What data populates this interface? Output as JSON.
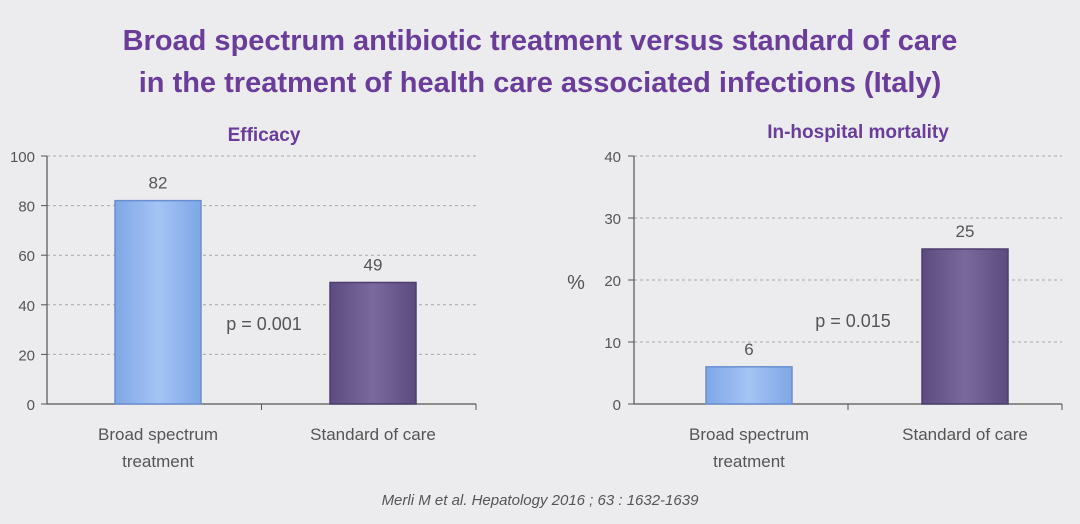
{
  "title": {
    "line1": "Broad spectrum antibiotic treatment versus standard of care",
    "line2": "in the treatment of health care associated infections (Italy)"
  },
  "citation": "Merli M et al. Hepatology 2016 ; 63 : 1632-1639",
  "colors": {
    "title": "#6a3d9a",
    "broad_bar": "#8fb4ee",
    "standard_bar": "#6b5a8e",
    "axis_text": "#555555",
    "grid": "#a8a8a8"
  },
  "chart_data": [
    {
      "type": "bar",
      "title": "Efficacy",
      "ylabel": "",
      "categories": [
        "Broad spectrum treatment",
        "Standard of care"
      ],
      "category_lines": [
        [
          "Broad spectrum",
          "treatment"
        ],
        [
          "Standard of care"
        ]
      ],
      "values": [
        82,
        49
      ],
      "ylim": [
        0,
        100
      ],
      "yticks": [
        0,
        20,
        40,
        60,
        80,
        100
      ],
      "annotation": "p = 0.001",
      "grid": true
    },
    {
      "type": "bar",
      "title": "In-hospital mortality",
      "ylabel": "%",
      "categories": [
        "Broad spectrum treatment",
        "Standard of care"
      ],
      "category_lines": [
        [
          "Broad spectrum",
          "treatment"
        ],
        [
          "Standard of care"
        ]
      ],
      "values": [
        6,
        25
      ],
      "ylim": [
        0,
        40
      ],
      "yticks": [
        0,
        10,
        20,
        30,
        40
      ],
      "annotation": "p = 0.015",
      "grid": true
    }
  ]
}
